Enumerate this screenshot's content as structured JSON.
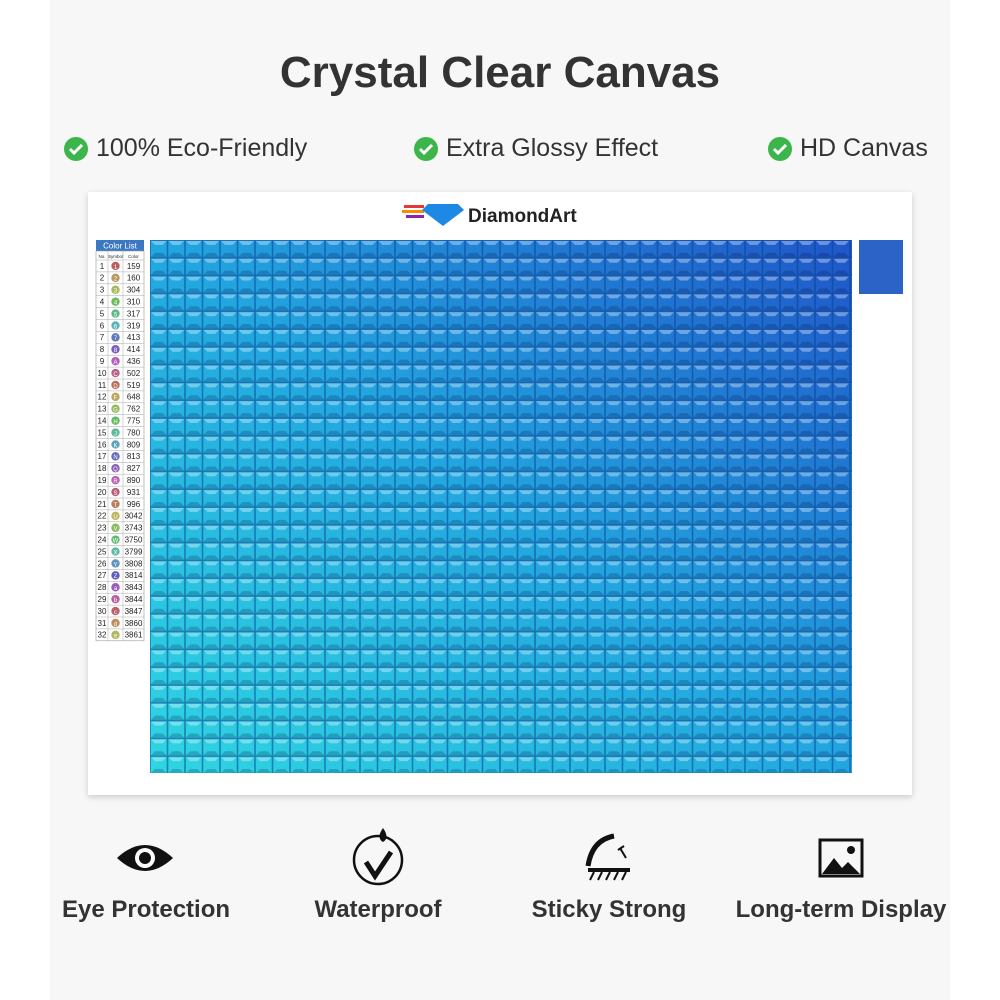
{
  "header": {
    "title": "Crystal Clear Canvas"
  },
  "features": [
    "100% Eco-Friendly",
    "Extra Glossy Effect",
    "HD Canvas"
  ],
  "brand": "DiamondArt",
  "color_list": {
    "title": "Color List",
    "columns": [
      "No.",
      "Symbol",
      "Color"
    ],
    "rows": [
      [
        "1",
        "1",
        "159"
      ],
      [
        "2",
        "2",
        "160"
      ],
      [
        "3",
        "3",
        "304"
      ],
      [
        "4",
        "4",
        "310"
      ],
      [
        "5",
        "5",
        "317"
      ],
      [
        "6",
        "6",
        "319"
      ],
      [
        "7",
        "7",
        "413"
      ],
      [
        "8",
        "8",
        "414"
      ],
      [
        "9",
        "A",
        "436"
      ],
      [
        "10",
        "C",
        "502"
      ],
      [
        "11",
        "D",
        "519"
      ],
      [
        "12",
        "F",
        "648"
      ],
      [
        "13",
        "G",
        "762"
      ],
      [
        "14",
        "H",
        "775"
      ],
      [
        "15",
        "J",
        "780"
      ],
      [
        "16",
        "K",
        "809"
      ],
      [
        "17",
        "N",
        "813"
      ],
      [
        "18",
        "Q",
        "827"
      ],
      [
        "19",
        "R",
        "890"
      ],
      [
        "20",
        "S",
        "931"
      ],
      [
        "21",
        "T",
        "996"
      ],
      [
        "22",
        "U",
        "3042"
      ],
      [
        "23",
        "V",
        "3743"
      ],
      [
        "24",
        "W",
        "3750"
      ],
      [
        "25",
        "X",
        "3799"
      ],
      [
        "26",
        "Y",
        "3808"
      ],
      [
        "27",
        "Z",
        "3814"
      ],
      [
        "28",
        "a",
        "3843"
      ],
      [
        "29",
        "b",
        "3844"
      ],
      [
        "30",
        "c",
        "3847"
      ],
      [
        "31",
        "d",
        "3860"
      ],
      [
        "32",
        "e",
        "3861"
      ]
    ]
  },
  "benefits": [
    "Eye Protection",
    "Waterproof",
    "Sticky Strong",
    "Long-term Display"
  ]
}
